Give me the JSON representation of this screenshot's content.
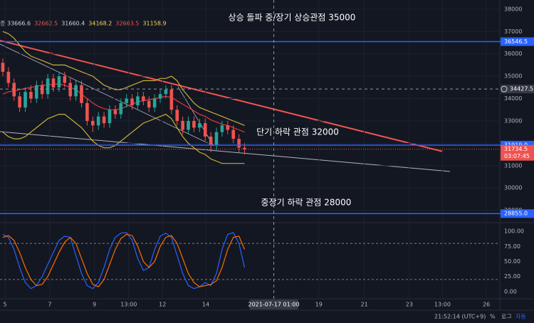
{
  "chart_data": {
    "type": "candlestick",
    "annotations": [
      {
        "text": "상승 돌파 중/장기 상승관점 35000",
        "x": 410,
        "y": 25
      },
      {
        "text": "단기 하락 관점 32000",
        "x": 418,
        "y": 186
      },
      {
        "text": "중장기 하락 관점 28000",
        "x": 430,
        "y": 285
      }
    ],
    "indicator_prefix": "종",
    "indicator_values": [
      {
        "text": "33666.6",
        "color": "#d1d4dc"
      },
      {
        "text": "32662.5",
        "color": "#ef5350"
      },
      {
        "text": "31660.4",
        "color": "#d1d4dc"
      },
      {
        "text": "34168.2",
        "color": "#f5d547"
      },
      {
        "text": "32663.5",
        "color": "#ef5350"
      },
      {
        "text": "31158.9",
        "color": "#f5d547"
      }
    ],
    "up_color": "#26a69a",
    "down_color": "#ef5350",
    "open": [
      35600,
      35200,
      34700,
      34100,
      33600,
      34300,
      34000,
      34600,
      34200,
      34900,
      34500,
      35000,
      34700,
      34100,
      34600,
      33800,
      33000,
      32800,
      33200,
      32900,
      33500,
      33300,
      33800,
      34000,
      33700,
      34100,
      33900,
      33600,
      34000,
      34200,
      34400,
      33500,
      33000,
      32600,
      33000,
      32700,
      32900,
      32300,
      31900,
      32500,
      32800,
      32600,
      32200,
      31800
    ],
    "high": [
      35800,
      35400,
      34900,
      34300,
      34500,
      34600,
      34800,
      34800,
      35100,
      35100,
      35200,
      35200,
      34900,
      34800,
      34800,
      34000,
      33200,
      33400,
      33400,
      33700,
      33700,
      34000,
      34200,
      34200,
      34300,
      34300,
      34100,
      34200,
      34400,
      34600,
      34600,
      33700,
      33200,
      33200,
      33200,
      33100,
      33100,
      32500,
      32700,
      33000,
      33000,
      32800,
      32400,
      32000
    ],
    "low": [
      35000,
      34500,
      33900,
      33400,
      33400,
      33800,
      33800,
      34000,
      34000,
      34300,
      34300,
      34500,
      33900,
      33900,
      33600,
      32800,
      32500,
      32600,
      32700,
      32700,
      33100,
      33100,
      33600,
      33500,
      33500,
      33700,
      33400,
      33400,
      33800,
      34000,
      33300,
      32800,
      32400,
      32400,
      32500,
      32500,
      32100,
      31600,
      31700,
      32300,
      32400,
      32000,
      31600,
      31500
    ],
    "close": [
      35200,
      34700,
      34100,
      33600,
      34300,
      34000,
      34600,
      34200,
      34900,
      34500,
      35000,
      34700,
      34100,
      34600,
      33800,
      33000,
      32800,
      33200,
      32900,
      33500,
      33300,
      33800,
      34000,
      33700,
      34100,
      33900,
      33600,
      34000,
      34200,
      34400,
      33500,
      33000,
      32600,
      33000,
      32700,
      32900,
      32300,
      31900,
      32500,
      32800,
      32600,
      32200,
      31800,
      31734.5
    ],
    "series": [
      {
        "color": "#e53935",
        "values": [
          34200,
          34300,
          34350,
          34400,
          34450,
          34500,
          34550,
          34600,
          34600,
          34650,
          34650,
          34600,
          34500,
          34400,
          34200,
          34000,
          33800,
          33650,
          33550,
          33500,
          33500,
          33550,
          33650,
          33750,
          33850,
          33900,
          33950,
          34000,
          34050,
          34100,
          34050,
          33900,
          33750,
          33600,
          33450,
          33300,
          33200,
          33050,
          32950,
          32850,
          32800,
          32700,
          32600,
          32500
        ]
      },
      {
        "color": "#c9b037",
        "values": [
          37000,
          36900,
          36700,
          36400,
          36100,
          35900,
          35800,
          35700,
          35600,
          35500,
          35500,
          35500,
          35400,
          35300,
          35200,
          35100,
          35000,
          34800,
          34600,
          34500,
          34400,
          34400,
          34500,
          34600,
          34700,
          34800,
          34800,
          34800,
          34900,
          34900,
          35000,
          34800,
          34400,
          34100,
          33800,
          33600,
          33500,
          33400,
          33300,
          33200,
          33100,
          33000,
          32900,
          32800
        ]
      },
      {
        "color": "#c9b037",
        "values": [
          32500,
          32300,
          32200,
          32200,
          32300,
          32500,
          32700,
          32900,
          33100,
          33200,
          33300,
          33300,
          33100,
          32900,
          32700,
          32400,
          32100,
          31900,
          31800,
          31800,
          31900,
          32100,
          32300,
          32500,
          32700,
          32900,
          33000,
          33100,
          33200,
          33300,
          33100,
          32700,
          32300,
          32000,
          31800,
          31600,
          31500,
          31300,
          31200,
          31100,
          31100,
          31100,
          31100,
          31100
        ]
      }
    ],
    "ylim": [
      28480,
      38410
    ],
    "yticks": [
      29000,
      30000,
      31000,
      32000,
      33000,
      34000,
      35000,
      36000,
      37000,
      38000
    ],
    "levels": [
      {
        "value": 36546.5,
        "label": "36546.5"
      },
      {
        "value": 31919.0,
        "label": "31919.0"
      },
      {
        "value": 28855.0,
        "label": "28855.0"
      }
    ],
    "level_color": "#2962ff",
    "crosshair": {
      "value": 34427.5,
      "label": "34427.5",
      "time": {
        "value": 48.2,
        "label": "2021-07-17  01:00"
      }
    },
    "last_price": {
      "label": "31734.5",
      "countdown": "03:07:45"
    },
    "xlim": [
      -0.5,
      88.4
    ],
    "xticks": [
      {
        "value": 0.4,
        "label": "5"
      },
      {
        "value": 8.35,
        "label": "7"
      },
      {
        "value": 16.3,
        "label": "9"
      },
      {
        "value": 22.4,
        "label": "13:00"
      },
      {
        "value": 28.4,
        "label": "12"
      },
      {
        "value": 36.1,
        "label": "14"
      },
      {
        "value": 56.2,
        "label": "19"
      },
      {
        "value": 64.3,
        "label": "21"
      },
      {
        "value": 72.3,
        "label": "23"
      },
      {
        "value": 78.2,
        "label": "13:00"
      },
      {
        "value": 86,
        "label": "26"
      }
    ],
    "oscillator": {
      "ylim": [
        -12,
        112
      ],
      "yticks": [
        {
          "value": 0,
          "label": "0.00"
        },
        {
          "value": 25,
          "label": "25.00"
        },
        {
          "value": 50,
          "label": "50.00"
        },
        {
          "value": 75,
          "label": "75.00"
        },
        {
          "value": 100,
          "label": "100.00"
        }
      ],
      "bands": [
        80,
        20
      ],
      "series": [
        {
          "color": "#2962ff",
          "values": [
            95,
            90,
            70,
            40,
            15,
            5,
            10,
            25,
            45,
            65,
            85,
            92,
            90,
            60,
            30,
            10,
            5,
            15,
            40,
            70,
            90,
            97,
            98,
            85,
            55,
            35,
            40,
            70,
            92,
            97,
            90,
            60,
            30,
            10,
            5,
            8,
            15,
            10,
            30,
            70,
            95,
            98,
            80,
            40
          ]
        },
        {
          "color": "#ff6d00",
          "values": [
            90,
            93,
            85,
            65,
            40,
            20,
            10,
            12,
            25,
            45,
            65,
            82,
            90,
            80,
            55,
            30,
            12,
            8,
            20,
            45,
            70,
            88,
            95,
            93,
            75,
            50,
            40,
            50,
            75,
            90,
            93,
            80,
            55,
            30,
            15,
            8,
            10,
            12,
            18,
            40,
            70,
            90,
            92,
            70
          ]
        }
      ]
    },
    "footer": {
      "clock": "21:52:14 (UTC+9)",
      "percent": "%",
      "log": "로그",
      "auto": "자동"
    }
  }
}
